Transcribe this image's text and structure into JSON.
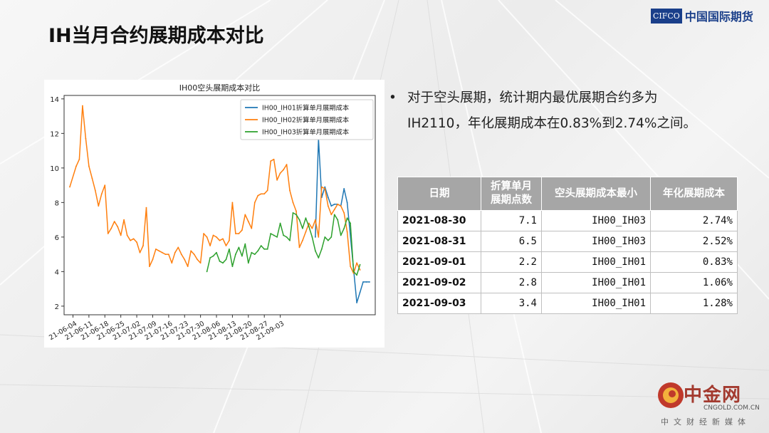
{
  "page": {
    "title": "IH当月合约展期成本对比",
    "logo_box": "CIFCO",
    "logo_text": "中国国际期货"
  },
  "bullet": {
    "line1": "对于空头展期，统计期内最优展期合约多为",
    "line2": "IH2110，年化展期成本在0.83%到2.74%之间。"
  },
  "table": {
    "headers": [
      "日期",
      "折算单月\n展期点数",
      "空头展期成本最小",
      "年化展期成本"
    ],
    "header_l1": "折算单月",
    "header_l2": "展期点数",
    "rows": [
      {
        "date": "2021-08-30",
        "points": "7.1",
        "contract": "IH00_IH03",
        "annual": "2.74%"
      },
      {
        "date": "2021-08-31",
        "points": "6.5",
        "contract": "IH00_IH03",
        "annual": "2.52%"
      },
      {
        "date": "2021-09-01",
        "points": "2.2",
        "contract": "IH00_IH01",
        "annual": "0.83%"
      },
      {
        "date": "2021-09-02",
        "points": "2.8",
        "contract": "IH00_IH01",
        "annual": "1.06%"
      },
      {
        "date": "2021-09-03",
        "points": "3.4",
        "contract": "IH00_IH01",
        "annual": "1.28%"
      }
    ]
  },
  "watermark": {
    "name": "中金网",
    "url": "CNGOLD.COM.CN",
    "sub": "中文财经新媒体"
  },
  "chart_data": {
    "type": "line",
    "title": "IH00空头展期成本对比",
    "xlabel": "",
    "ylabel": "",
    "ylim": [
      1.5,
      14.2
    ],
    "yticks": [
      2,
      4,
      6,
      8,
      10,
      12,
      14
    ],
    "x_tick_labels": [
      "21-06-04",
      "21-06-11",
      "21-06-18",
      "21-06-25",
      "21-07-02",
      "21-07-09",
      "21-07-16",
      "21-07-23",
      "21-07-30",
      "21-08-06",
      "21-08-13",
      "21-08-20",
      "21-08-27",
      "21-09-03"
    ],
    "legend_position": "top-right",
    "series": [
      {
        "name": "IH00_IH01折算单月展期成本",
        "color": "#1f77b4",
        "x": [
          77,
          78,
          79,
          80,
          81,
          82,
          83,
          84,
          85,
          86,
          87,
          90,
          91,
          92,
          93,
          94
        ],
        "values": [
          6.0,
          11.7,
          8.3,
          8.9,
          8.3,
          7.8,
          7.9,
          7.9,
          7.8,
          8.8,
          8.0,
          2.2,
          2.8,
          3.4,
          3.4,
          3.4
        ]
      },
      {
        "name": "IH00_IH02折算单月展期成本",
        "color": "#ff7f0e",
        "x": [
          0,
          2,
          3,
          4,
          5,
          6,
          7,
          8,
          9,
          10,
          11,
          12,
          13,
          14,
          15,
          16,
          17,
          18,
          19,
          20,
          21,
          22,
          23,
          24,
          25,
          26,
          27,
          28,
          29,
          30,
          31,
          32,
          33,
          34,
          35,
          36,
          37,
          38,
          39,
          40,
          41,
          42,
          43,
          44,
          45,
          46,
          47,
          48,
          49,
          50,
          51,
          52,
          53,
          54,
          55,
          56,
          57,
          58,
          59,
          60,
          61,
          62,
          63,
          64,
          65,
          66,
          67,
          68,
          69,
          70,
          71,
          72,
          73,
          74,
          75,
          76,
          77,
          78,
          79,
          80,
          81,
          82,
          83,
          84,
          85,
          86,
          87,
          88,
          89,
          90,
          91
        ],
        "values": [
          8.9,
          10.1,
          10.5,
          13.6,
          11.7,
          10.1,
          9.4,
          8.7,
          7.8,
          8.5,
          9.0,
          6.2,
          6.5,
          6.9,
          6.6,
          6.1,
          7.0,
          6.1,
          5.8,
          5.9,
          5.7,
          5.1,
          5.5,
          7.7,
          4.3,
          4.7,
          5.3,
          5.2,
          5.1,
          5.0,
          5.0,
          4.5,
          5.1,
          5.4,
          5.0,
          4.7,
          4.3,
          5.2,
          5.0,
          4.7,
          4.5,
          6.2,
          6.0,
          5.5,
          6.1,
          6.0,
          5.8,
          5.9,
          5.5,
          5.8,
          8.0,
          6.2,
          6.2,
          6.4,
          7.3,
          6.9,
          6.5,
          8.0,
          8.4,
          8.5,
          8.5,
          8.7,
          10.4,
          10.5,
          9.3,
          9.7,
          9.9,
          10.2,
          8.7,
          8.0,
          7.5,
          5.4,
          5.8,
          6.3,
          6.8,
          6.5,
          7.0,
          6.0,
          8.9,
          8.8,
          7.8,
          7.3,
          7.6,
          7.9,
          7.8,
          7.4,
          6.3,
          4.3,
          3.9,
          4.5,
          4.1
        ]
      },
      {
        "name": "IH00_IH03折算单月展期成本",
        "color": "#2ca02c",
        "x": [
          43,
          44,
          45,
          46,
          47,
          48,
          49,
          50,
          51,
          52,
          53,
          54,
          55,
          56,
          57,
          58,
          59,
          60,
          61,
          62,
          63,
          64,
          65,
          66,
          67,
          68,
          69,
          70,
          71,
          72,
          73,
          74,
          75,
          76,
          77,
          78,
          79,
          80,
          81,
          82,
          83,
          84,
          85,
          86,
          87,
          88,
          89,
          90,
          91
        ],
        "values": [
          4.0,
          4.8,
          4.9,
          5.1,
          4.6,
          4.5,
          4.7,
          5.3,
          4.3,
          5.0,
          5.4,
          4.9,
          5.6,
          4.5,
          5.1,
          5.0,
          5.2,
          5.5,
          5.3,
          5.3,
          6.2,
          6.1,
          6.0,
          6.8,
          6.1,
          6.0,
          5.8,
          7.4,
          7.3,
          7.0,
          6.5,
          7.1,
          6.6,
          6.0,
          5.2,
          4.8,
          5.3,
          6.0,
          5.8,
          6.0,
          7.3,
          7.0,
          6.1,
          6.5,
          7.1,
          6.8,
          4.0,
          3.8,
          4.4
        ]
      }
    ]
  }
}
